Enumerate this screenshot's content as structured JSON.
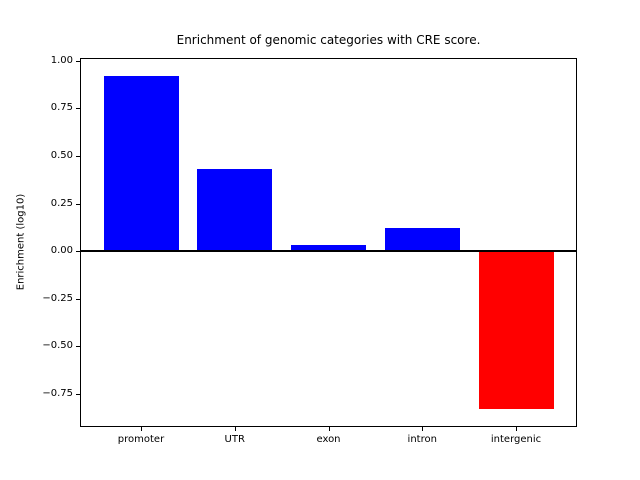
{
  "chart_data": {
    "type": "bar",
    "title": "Enrichment of genomic categories with CRE score.",
    "xlabel": "",
    "ylabel": "Enrichment (log10)",
    "categories": [
      "promoter",
      "UTR",
      "exon",
      "intron",
      "intergenic"
    ],
    "values": [
      0.92,
      0.43,
      0.03,
      0.12,
      -0.83
    ],
    "bar_colors": [
      "#0000ff",
      "#0000ff",
      "#0000ff",
      "#0000ff",
      "#ff0000"
    ],
    "positive_color": "#0000ff",
    "negative_color": "#ff0000",
    "yticks": [
      1.0,
      0.75,
      0.5,
      0.25,
      0.0,
      -0.25,
      -0.5,
      -0.75
    ],
    "ytick_labels": [
      "1.00",
      "0.75",
      "0.50",
      "0.25",
      "0.00",
      "−0.25",
      "−0.50",
      "−0.75"
    ],
    "ylim": [
      -0.92,
      1.01
    ],
    "xlim": [
      -0.64,
      4.64
    ],
    "bar_width": 0.8,
    "grid": false,
    "legend": null,
    "zero_line": true,
    "background_color": "#ffffff",
    "spine_color": "#000000"
  }
}
